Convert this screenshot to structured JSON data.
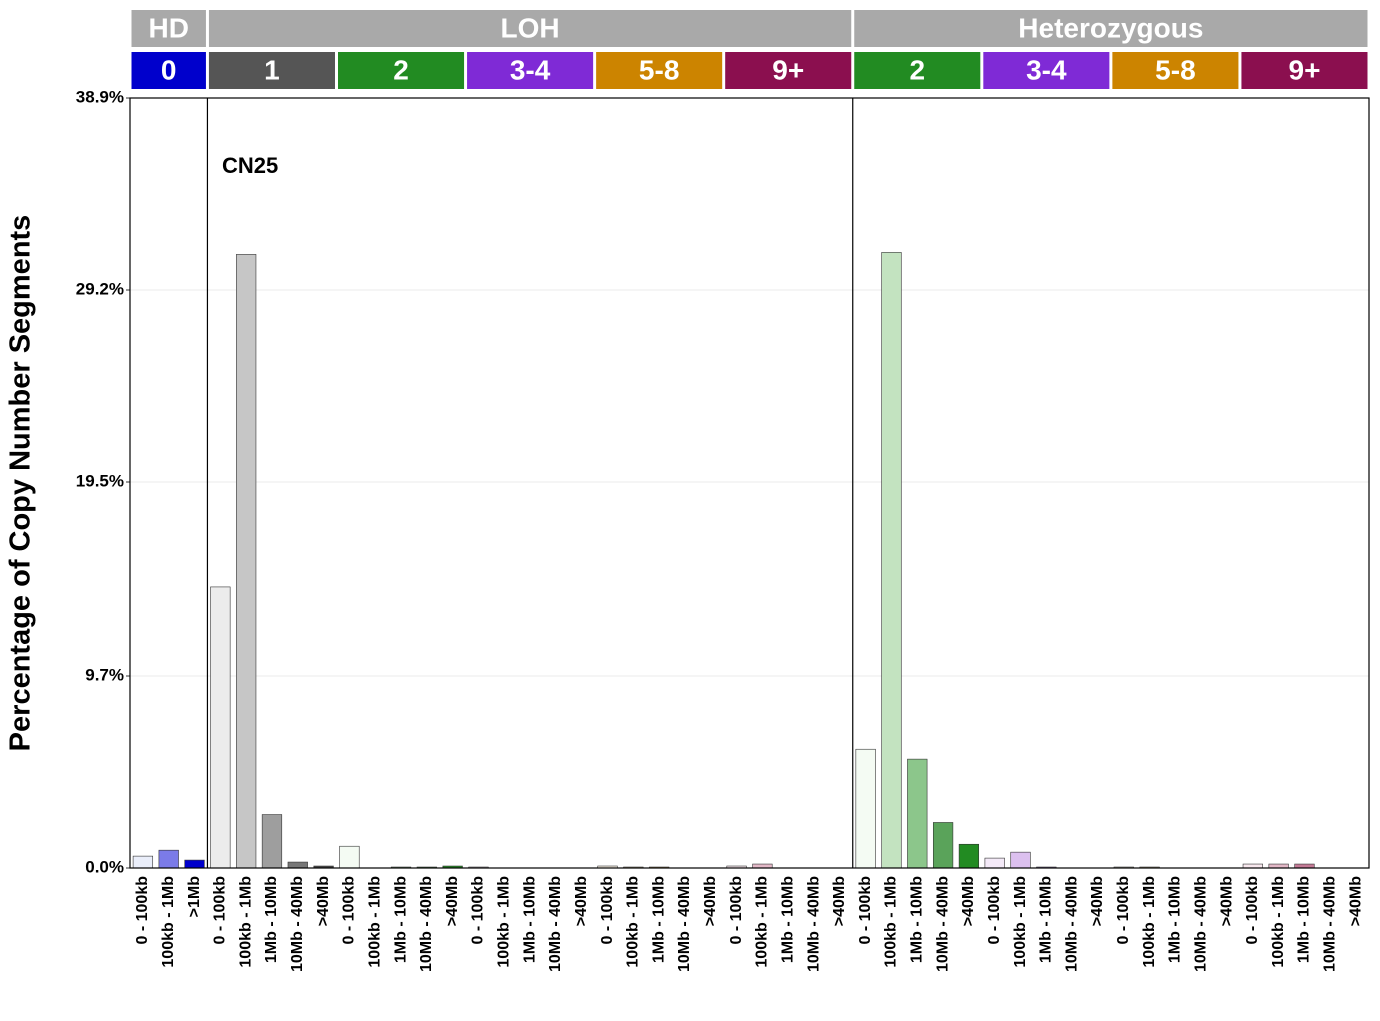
{
  "chart_data": {
    "type": "bar",
    "annotation": "CN25",
    "y_label": "Percentage of Copy Number Segments",
    "ylim": [
      0,
      38.9
    ],
    "yticks": [
      {
        "value": 0,
        "label": "0.0%"
      },
      {
        "value": 9.7,
        "label": "9.7%"
      },
      {
        "value": 19.5,
        "label": "19.5%"
      },
      {
        "value": 29.2,
        "label": "29.2%"
      },
      {
        "value": 38.9,
        "label": "38.9%"
      }
    ],
    "grid": true,
    "header_color": "#a9a9a9",
    "groups": [
      {
        "name": "HD",
        "subgroups": [
          {
            "name": "0",
            "color": "#0000cc",
            "categories": [
              "0 - 100kb",
              "100kb - 1Mb",
              ">1Mb"
            ],
            "values": [
              0.6,
              0.9,
              0.4
            ],
            "colors": [
              "#eaeefa",
              "#7b7be8",
              "#0000cc"
            ]
          }
        ]
      },
      {
        "name": "LOH",
        "subgroups": [
          {
            "name": "1",
            "color": "#555555",
            "categories": [
              "0 - 100kb",
              "100kb - 1Mb",
              "1Mb - 10Mb",
              "10Mb - 40Mb",
              ">40Mb"
            ],
            "values": [
              14.2,
              31.0,
              2.7,
              0.3,
              0.1
            ],
            "colors": [
              "#ececec",
              "#c6c6c6",
              "#9e9e9e",
              "#777777",
              "#474747"
            ]
          },
          {
            "name": "2",
            "color": "#228b22",
            "categories": [
              "0 - 100kb",
              "100kb - 1Mb",
              "1Mb - 10Mb",
              "10Mb - 40Mb",
              ">40Mb"
            ],
            "values": [
              1.1,
              0,
              0.05,
              0.05,
              0.1
            ],
            "colors": [
              "#f4fbf3",
              "#c3e3c0",
              "#8cc68b",
              "#5aa35a",
              "#228b22"
            ]
          },
          {
            "name": "3-4",
            "color": "#7f2ad6",
            "categories": [
              "0 - 100kb",
              "100kb - 1Mb",
              "1Mb - 10Mb",
              "10Mb - 40Mb",
              ">40Mb"
            ],
            "values": [
              0.05,
              0,
              0,
              0,
              0
            ],
            "colors": [
              "#f4eaf8",
              "#dcc0ef",
              "#b98de4",
              "#9a5fd9",
              "#7f2ad6"
            ]
          },
          {
            "name": "5-8",
            "color": "#cc8400",
            "categories": [
              "0 - 100kb",
              "100kb - 1Mb",
              "1Mb - 10Mb",
              "10Mb - 40Mb",
              ">40Mb"
            ],
            "values": [
              0.1,
              0.05,
              0.05,
              0,
              0
            ],
            "colors": [
              "#fbf3e5",
              "#f0d7ad",
              "#e2b56b",
              "#d59c37",
              "#cc8400"
            ]
          },
          {
            "name": "9+",
            "color": "#8b0f4f",
            "categories": [
              "0 - 100kb",
              "100kb - 1Mb",
              "1Mb - 10Mb",
              "10Mb - 40Mb",
              ">40Mb"
            ],
            "values": [
              0.1,
              0.2,
              0,
              0,
              0
            ],
            "colors": [
              "#f8e8ee",
              "#e3b8c7",
              "#c47a96",
              "#a6466c",
              "#8b0f4f"
            ]
          }
        ]
      },
      {
        "name": "Heterozygous",
        "subgroups": [
          {
            "name": "2",
            "color": "#228b22",
            "categories": [
              "0 - 100kb",
              "100kb - 1Mb",
              "1Mb - 10Mb",
              "10Mb - 40Mb",
              ">40Mb"
            ],
            "values": [
              6.0,
              31.1,
              5.5,
              2.3,
              1.2
            ],
            "colors": [
              "#f4fbf3",
              "#c3e3c0",
              "#8cc68b",
              "#5aa35a",
              "#228b22"
            ]
          },
          {
            "name": "3-4",
            "color": "#7f2ad6",
            "categories": [
              "0 - 100kb",
              "100kb - 1Mb",
              "1Mb - 10Mb",
              "10Mb - 40Mb",
              ">40Mb"
            ],
            "values": [
              0.5,
              0.8,
              0.05,
              0,
              0
            ],
            "colors": [
              "#f4eaf8",
              "#dcc0ef",
              "#b98de4",
              "#9a5fd9",
              "#7f2ad6"
            ]
          },
          {
            "name": "5-8",
            "color": "#cc8400",
            "categories": [
              "0 - 100kb",
              "100kb - 1Mb",
              "1Mb - 10Mb",
              "10Mb - 40Mb",
              ">40Mb"
            ],
            "values": [
              0.05,
              0.05,
              0,
              0,
              0
            ],
            "colors": [
              "#fbf3e5",
              "#f0d7ad",
              "#e2b56b",
              "#d59c37",
              "#cc8400"
            ]
          },
          {
            "name": "9+",
            "color": "#8b0f4f",
            "categories": [
              "0 - 100kb",
              "100kb - 1Mb",
              "1Mb - 10Mb",
              "10Mb - 40Mb",
              ">40Mb"
            ],
            "values": [
              0.2,
              0.2,
              0.2,
              0,
              0
            ],
            "colors": [
              "#f8e8ee",
              "#e3b8c7",
              "#c47a96",
              "#a6466c",
              "#8b0f4f"
            ]
          }
        ]
      }
    ]
  }
}
